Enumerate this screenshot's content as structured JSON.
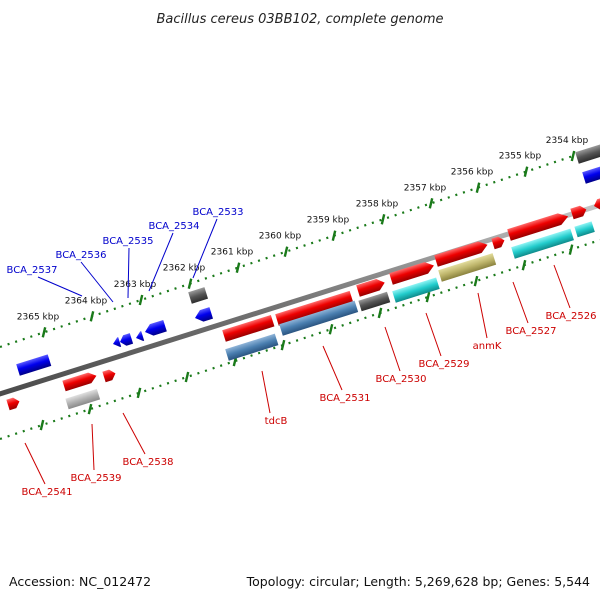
{
  "title": "Bacillus cereus 03BB102, complete genome",
  "footer": {
    "accession": "Accession: NC_012472",
    "info": "Topology: circular; Length: 5,269,628 bp; Genes: 5,544"
  },
  "colors": {
    "forward_label": "#cc0000",
    "reverse_label": "#0000cc",
    "scale_tick": "#1a7a1a"
  },
  "scale_labels": [
    "2354 kbp",
    "2355 kbp",
    "2356 kbp",
    "2357 kbp",
    "2358 kbp",
    "2359 kbp",
    "2360 kbp",
    "2361 kbp",
    "2362 kbp",
    "2363 kbp",
    "2364 kbp",
    "2365 kbp"
  ],
  "forward_gene_labels": [
    "BCA_2526",
    "BCA_2527",
    "anmK",
    "BCA_2529",
    "BCA_2530",
    "BCA_2531",
    "tdcB",
    "BCA_2538",
    "BCA_2539",
    "BCA_2541"
  ],
  "reverse_gene_labels": [
    "BCA_2533",
    "BCA_2534",
    "BCA_2535",
    "BCA_2536",
    "BCA_2537"
  ]
}
